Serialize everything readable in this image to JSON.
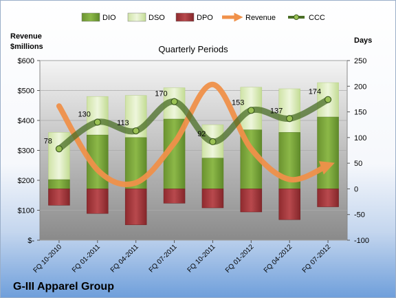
{
  "chart_data": {
    "type": "bar",
    "title": "Quarterly Periods",
    "company": "G-III Apparel Group",
    "ylabel_left": [
      "Revenue",
      "$millions"
    ],
    "ylabel_right": "Days",
    "categories": [
      "FQ 10-2010",
      "FQ 01-2011",
      "FQ 04-2011",
      "FQ 07-2011",
      "FQ 10-2011",
      "FQ 01-2012",
      "FQ 04-2012",
      "FQ 07-2012"
    ],
    "left_ticks": [
      "$600",
      "$500",
      "$400",
      "$300",
      "$200",
      "$100",
      "$-"
    ],
    "right_ticks": [
      "250",
      "200",
      "150",
      "100",
      "50",
      "0",
      "-50",
      "-100"
    ],
    "left_axis": {
      "min": 0,
      "max": 600
    },
    "right_axis": {
      "min": -100,
      "max": 250
    },
    "legend": [
      "DIO",
      "DSO",
      "DPO",
      "Revenue",
      "CCC"
    ],
    "legend_position": "top",
    "series": [
      {
        "name": "DIO",
        "axis": "right",
        "values": [
          18,
          105,
          100,
          136,
          60,
          115,
          110,
          140
        ]
      },
      {
        "name": "DSO",
        "axis": "right",
        "values": [
          110,
          180,
          182,
          197,
          125,
          198,
          195,
          207
        ]
      },
      {
        "name": "DPO",
        "axis": "right",
        "values": [
          -32,
          -48,
          -70,
          -28,
          -37,
          -45,
          -60,
          -35
        ]
      },
      {
        "name": "Revenue",
        "axis": "left",
        "values": [
          448,
          235,
          192,
          325,
          520,
          305,
          203,
          250
        ]
      },
      {
        "name": "CCC",
        "axis": "right",
        "values": [
          78,
          130,
          113,
          170,
          92,
          153,
          137,
          174
        ]
      }
    ],
    "ccc_labels": [
      "78",
      "130",
      "113",
      "170",
      "92",
      "153",
      "137",
      "174"
    ],
    "colors": {
      "DIO": "#7ea83a",
      "DSO": "#dfeec1",
      "DPO": "#a8383c",
      "Revenue": "#f0914a",
      "CCC": "#4a6e26"
    },
    "grid": true
  }
}
